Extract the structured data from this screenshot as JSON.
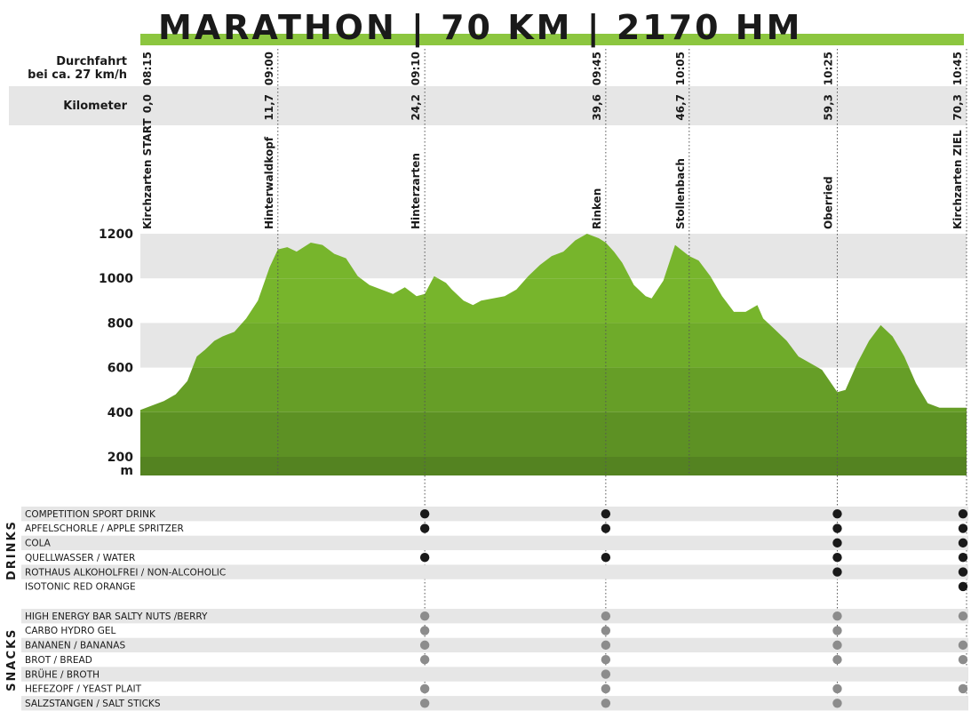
{
  "title": "MARATHON | 70 KM | 2170 HM",
  "header_rows": {
    "time_label_line1": "Durchfahrt",
    "time_label_line2": "bei ca. 27 km/h",
    "km_label": "Kilometer"
  },
  "checkpoints": [
    {
      "name": "Kirchzarten START",
      "time": "08:15",
      "km": "0,0"
    },
    {
      "name": "Hinterwaldkopf",
      "time": "09:00",
      "km": "11,7"
    },
    {
      "name": "Hinterzarten",
      "time": "09:10",
      "km": "24,2"
    },
    {
      "name": "Rinken",
      "time": "09:45",
      "km": "39,6"
    },
    {
      "name": "Stollenbach",
      "time": "10:05",
      "km": "46,7"
    },
    {
      "name": "Oberried",
      "time": "10:25",
      "km": "59,3"
    },
    {
      "name": "Kirchzarten ZIEL",
      "time": "10:45",
      "km": "70,3"
    }
  ],
  "colors": {
    "accent": "#8cc63f",
    "band_light": "#e6e6e6",
    "profile_bands": [
      "#77b52c",
      "#6ea82a",
      "#659b27",
      "#5c8e24",
      "#538120"
    ],
    "dot_drink": "#1a1a1a",
    "dot_snack": "#8c8c8c"
  },
  "chart_data": {
    "type": "area",
    "xlabel": "",
    "ylabel": "m",
    "xlim": [
      0,
      70.3
    ],
    "ylim": [
      100,
      1200
    ],
    "yticks": [
      "1200",
      "1000",
      "800",
      "600",
      "400",
      "200"
    ],
    "ytick_values": [
      1200,
      1000,
      800,
      600,
      400,
      200
    ],
    "x": [
      0,
      1,
      2,
      3,
      4,
      4.8,
      5.5,
      6.3,
      7,
      8,
      9,
      10,
      11,
      11.7,
      12.5,
      13.3,
      14.5,
      15.5,
      16.5,
      17.5,
      18.5,
      19.5,
      20.5,
      21.5,
      22.5,
      23.5,
      24.2,
      25,
      26,
      26.5,
      27.5,
      28.3,
      29,
      30,
      31,
      32,
      33,
      34,
      35,
      36,
      37,
      38,
      39,
      39.6,
      40.3,
      41,
      42,
      43,
      43.5,
      44.5,
      45.5,
      46.7,
      47.5,
      48.5,
      49.5,
      50.5,
      51.5,
      52.5,
      53,
      54,
      55,
      56,
      57,
      58,
      59.3,
      60,
      61,
      62,
      63,
      64,
      65,
      66,
      67,
      68,
      69,
      70.3
    ],
    "y": [
      410,
      430,
      450,
      480,
      540,
      650,
      680,
      720,
      740,
      760,
      820,
      900,
      1050,
      1130,
      1140,
      1120,
      1160,
      1150,
      1110,
      1090,
      1010,
      970,
      950,
      930,
      960,
      920,
      930,
      1010,
      980,
      950,
      900,
      880,
      900,
      910,
      920,
      950,
      1010,
      1060,
      1100,
      1120,
      1170,
      1200,
      1180,
      1160,
      1120,
      1070,
      970,
      920,
      910,
      990,
      1150,
      1100,
      1080,
      1010,
      920,
      850,
      850,
      880,
      820,
      770,
      720,
      650,
      620,
      590,
      490,
      500,
      620,
      720,
      790,
      740,
      650,
      530,
      440,
      420,
      420,
      420
    ],
    "stations": [
      {
        "name": "Kirchzarten START",
        "km": 0
      },
      {
        "name": "Hinterwaldkopf",
        "km": 11.7
      },
      {
        "name": "Hinterzarten",
        "km": 24.2
      },
      {
        "name": "Rinken",
        "km": 39.6
      },
      {
        "name": "Stollenbach",
        "km": 46.7
      },
      {
        "name": "Oberried",
        "km": 59.3
      },
      {
        "name": "Kirchzarten ZIEL",
        "km": 70.3
      }
    ]
  },
  "supply": {
    "drinks_label": "DRINKS",
    "snacks_label": "SNACKS",
    "stations": [
      "Hinterzarten",
      "Rinken",
      "Oberried",
      "Kirchzarten ZIEL"
    ],
    "drinks": [
      {
        "label": "COMPETITION SPORT DRINK",
        "avail": [
          true,
          true,
          true,
          true
        ]
      },
      {
        "label": "APFELSCHORLE / APPLE SPRITZER",
        "avail": [
          true,
          true,
          true,
          true
        ]
      },
      {
        "label": "COLA",
        "avail": [
          false,
          false,
          true,
          true
        ]
      },
      {
        "label": "QUELLWASSER / WATER",
        "avail": [
          true,
          true,
          true,
          true
        ]
      },
      {
        "label": "ROTHAUS ALKOHOLFREI / NON-ALCOHOLIC",
        "avail": [
          false,
          false,
          true,
          true
        ]
      },
      {
        "label": "ISOTONIC RED ORANGE",
        "avail": [
          false,
          false,
          false,
          true
        ]
      }
    ],
    "snacks": [
      {
        "label": "HIGH ENERGY BAR SALTY NUTS /BERRY",
        "avail": [
          true,
          true,
          true,
          true
        ]
      },
      {
        "label": "CARBO HYDRO GEL",
        "avail": [
          true,
          true,
          true,
          false
        ]
      },
      {
        "label": "BANANEN / BANANAS",
        "avail": [
          true,
          true,
          true,
          true
        ]
      },
      {
        "label": "BROT / BREAD",
        "avail": [
          true,
          true,
          true,
          true
        ]
      },
      {
        "label": "BRÜHE / BROTH",
        "avail": [
          false,
          true,
          false,
          false
        ]
      },
      {
        "label": "HEFEZOPF / YEAST PLAIT",
        "avail": [
          true,
          true,
          true,
          true
        ]
      },
      {
        "label": "SALZSTANGEN / SALT STICKS",
        "avail": [
          true,
          true,
          true,
          false
        ]
      }
    ]
  }
}
